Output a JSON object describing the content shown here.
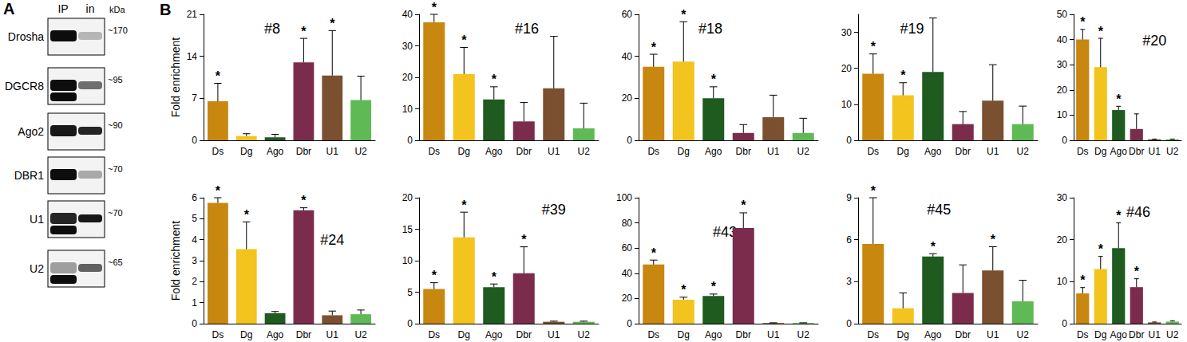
{
  "panel_a": {
    "label": "A",
    "lanes": [
      "IP",
      "in"
    ],
    "unit": "kDa",
    "rows": [
      {
        "protein": "Drosha",
        "size": "~170"
      },
      {
        "protein": "DGCR8",
        "size": "~95"
      },
      {
        "protein": "Ago2",
        "size": "~90"
      },
      {
        "protein": "DBR1",
        "size": "~70"
      },
      {
        "protein": "U1",
        "size": "~70"
      },
      {
        "protein": "U2",
        "size": "~65"
      }
    ]
  },
  "panel_b_label": "B",
  "chart_data": [
    {
      "type": "bar",
      "title": "#8",
      "ylabel": "Fold enrichment",
      "categories": [
        "Ds",
        "Dg",
        "Ago",
        "Dbr",
        "U1",
        "U2"
      ],
      "colors": [
        "#c8870e",
        "#f2c41d",
        "#1f5a1f",
        "#7b2b4c",
        "#7a5030",
        "#5fba55"
      ],
      "values": [
        6.5,
        0.7,
        0.5,
        13,
        10.8,
        6.7
      ],
      "errors": [
        3,
        0.4,
        0.5,
        4,
        7.5,
        4
      ],
      "annotations": [
        "*",
        null,
        null,
        "*",
        "*",
        null
      ],
      "ylim": [
        0,
        21
      ],
      "yticks": [
        0,
        7,
        14,
        21
      ],
      "grid": false
    },
    {
      "type": "bar",
      "title": "#16",
      "categories": [
        "Ds",
        "Dg",
        "Ago",
        "Dbr",
        "U1",
        "U2"
      ],
      "colors": [
        "#c8870e",
        "#f2c41d",
        "#1f5a1f",
        "#7b2b4c",
        "#7a5030",
        "#5fba55"
      ],
      "values": [
        37.5,
        21,
        13,
        6,
        16.5,
        3.8
      ],
      "errors": [
        2.5,
        8.5,
        4,
        6,
        16.5,
        8
      ],
      "annotations": [
        "*",
        "*",
        "*",
        null,
        null,
        null
      ],
      "ylim": [
        0,
        40
      ],
      "yticks": [
        0,
        10,
        20,
        30,
        40
      ],
      "grid": false
    },
    {
      "type": "bar",
      "title": "#18",
      "categories": [
        "Ds",
        "Dg",
        "Ago",
        "Dbr",
        "U1",
        "U2"
      ],
      "colors": [
        "#c8870e",
        "#f2c41d",
        "#1f5a1f",
        "#7b2b4c",
        "#7a5030",
        "#5fba55"
      ],
      "values": [
        35,
        37.5,
        20,
        3.5,
        11,
        3.5
      ],
      "errors": [
        6,
        19,
        5.5,
        4,
        10.5,
        7
      ],
      "annotations": [
        "*",
        "*",
        "*",
        null,
        null,
        null
      ],
      "ylim": [
        0,
        60
      ],
      "yticks": [
        0,
        20,
        40,
        60
      ],
      "grid": false
    },
    {
      "type": "bar",
      "title": "#19",
      "categories": [
        "Ds",
        "Dg",
        "Ago",
        "Dbr",
        "U1",
        "U2"
      ],
      "colors": [
        "#c8870e",
        "#f2c41d",
        "#1f5a1f",
        "#7b2b4c",
        "#7a5030",
        "#5fba55"
      ],
      "values": [
        18.5,
        12.5,
        19,
        4.5,
        11,
        4.5
      ],
      "errors": [
        5.5,
        3.5,
        15,
        3.5,
        10,
        5
      ],
      "annotations": [
        "*",
        "*",
        null,
        null,
        null,
        null
      ],
      "ylim": [
        0,
        35
      ],
      "yticks": [
        0,
        10,
        20,
        30
      ],
      "grid": false
    },
    {
      "type": "bar",
      "title": "#20",
      "categories": [
        "Ds",
        "Dg",
        "Ago",
        "Dbr",
        "U1",
        "U2"
      ],
      "colors": [
        "#c8870e",
        "#f2c41d",
        "#1f5a1f",
        "#7b2b4c",
        "#7a5030",
        "#5fba55"
      ],
      "values": [
        40,
        29,
        12,
        4.5,
        0.4,
        0.4
      ],
      "errors": [
        4,
        11.5,
        1.5,
        6,
        0.1,
        0.1
      ],
      "annotations": [
        "*",
        "*",
        "*",
        null,
        null,
        null
      ],
      "ylim": [
        0,
        50
      ],
      "yticks": [
        0,
        10,
        20,
        30,
        40,
        50
      ],
      "grid": false
    },
    {
      "type": "bar",
      "title": "#24",
      "ylabel": "Fold enrichment",
      "categories": [
        "Ds",
        "Dg",
        "Ago",
        "Dbr",
        "U1",
        "U2"
      ],
      "colors": [
        "#c8870e",
        "#f2c41d",
        "#1f5a1f",
        "#7b2b4c",
        "#7a5030",
        "#5fba55"
      ],
      "values": [
        5.75,
        3.55,
        0.5,
        5.4,
        0.4,
        0.45
      ],
      "errors": [
        0.25,
        1.3,
        0.08,
        0.12,
        0.2,
        0.2
      ],
      "annotations": [
        "*",
        "*",
        null,
        "*",
        null,
        null
      ],
      "ylim": [
        0,
        6
      ],
      "yticks": [
        0,
        1,
        2,
        3,
        4,
        5,
        6
      ],
      "grid": false
    },
    {
      "type": "bar",
      "title": "#39",
      "categories": [
        "Ds",
        "Dg",
        "Ago",
        "Dbr",
        "U1",
        "U2"
      ],
      "colors": [
        "#c8870e",
        "#f2c41d",
        "#1f5a1f",
        "#7b2b4c",
        "#7a5030",
        "#5fba55"
      ],
      "values": [
        5.5,
        13.7,
        5.8,
        8,
        0.3,
        0.3
      ],
      "errors": [
        1,
        4,
        0.5,
        4.2,
        0.1,
        0.1
      ],
      "annotations": [
        "*",
        "*",
        "*",
        "*",
        null,
        null
      ],
      "ylim": [
        0,
        20
      ],
      "yticks": [
        0,
        5,
        10,
        15,
        20
      ],
      "grid": false
    },
    {
      "type": "bar",
      "title": "#43",
      "categories": [
        "Ds",
        "Dg",
        "Ago",
        "Dbr",
        "U1",
        "U2"
      ],
      "colors": [
        "#c8870e",
        "#f2c41d",
        "#1f5a1f",
        "#7b2b4c",
        "#7a5030",
        "#5fba55"
      ],
      "values": [
        47,
        19,
        22,
        76,
        0.5,
        0.5
      ],
      "errors": [
        3.5,
        2,
        1.5,
        12,
        0.2,
        0.2
      ],
      "annotations": [
        "*",
        "*",
        "*",
        "*",
        null,
        null
      ],
      "ylim": [
        0,
        100
      ],
      "yticks": [
        0,
        20,
        40,
        60,
        80,
        100
      ],
      "grid": false
    },
    {
      "type": "bar",
      "title": "#45",
      "categories": [
        "Ds",
        "Dg",
        "Ago",
        "Dbr",
        "U1",
        "U2"
      ],
      "colors": [
        "#c8870e",
        "#f2c41d",
        "#1f5a1f",
        "#7b2b4c",
        "#7a5030",
        "#5fba55"
      ],
      "values": [
        5.7,
        1.1,
        4.8,
        2.2,
        3.8,
        1.6
      ],
      "errors": [
        3.3,
        1.1,
        0.2,
        2,
        1.7,
        1.5
      ],
      "annotations": [
        "*",
        null,
        "*",
        null,
        "*",
        null
      ],
      "ylim": [
        0,
        9
      ],
      "yticks": [
        0,
        3,
        6,
        9
      ],
      "grid": false
    },
    {
      "type": "bar",
      "title": "#46",
      "categories": [
        "Ds",
        "Dg",
        "Ago",
        "Dbr",
        "U1",
        "U2"
      ],
      "colors": [
        "#c8870e",
        "#f2c41d",
        "#1f5a1f",
        "#7b2b4c",
        "#7a5030",
        "#5fba55"
      ],
      "values": [
        7.2,
        13,
        18,
        8.7,
        0.3,
        0.5
      ],
      "errors": [
        1.4,
        3,
        6,
        2,
        0.1,
        0.2
      ],
      "annotations": [
        "*",
        "*",
        "*",
        "*",
        null,
        null
      ],
      "ylim": [
        0,
        30
      ],
      "yticks": [
        0,
        10,
        20,
        30
      ],
      "grid": false
    }
  ]
}
